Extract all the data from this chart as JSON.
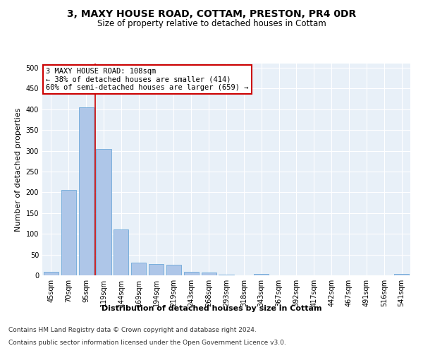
{
  "title": "3, MAXY HOUSE ROAD, COTTAM, PRESTON, PR4 0DR",
  "subtitle": "Size of property relative to detached houses in Cottam",
  "xlabel": "Distribution of detached houses by size in Cottam",
  "ylabel": "Number of detached properties",
  "categories": [
    "45sqm",
    "70sqm",
    "95sqm",
    "119sqm",
    "144sqm",
    "169sqm",
    "194sqm",
    "219sqm",
    "243sqm",
    "268sqm",
    "293sqm",
    "318sqm",
    "343sqm",
    "367sqm",
    "392sqm",
    "417sqm",
    "442sqm",
    "467sqm",
    "491sqm",
    "516sqm",
    "541sqm"
  ],
  "values": [
    8,
    205,
    405,
    305,
    110,
    30,
    28,
    25,
    8,
    6,
    2,
    0,
    3,
    0,
    0,
    0,
    0,
    0,
    0,
    0,
    3
  ],
  "bar_color": "#aec6e8",
  "bar_edgecolor": "#5a9fd4",
  "redline_x": 2.5,
  "annotation_text": "3 MAXY HOUSE ROAD: 108sqm\n← 38% of detached houses are smaller (414)\n60% of semi-detached houses are larger (659) →",
  "annotation_box_color": "#ffffff",
  "annotation_box_edgecolor": "#cc0000",
  "redline_color": "#cc0000",
  "ylim": [
    0,
    510
  ],
  "yticks": [
    0,
    50,
    100,
    150,
    200,
    250,
    300,
    350,
    400,
    450,
    500
  ],
  "background_color": "#e8f0f8",
  "footer_line1": "Contains HM Land Registry data © Crown copyright and database right 2024.",
  "footer_line2": "Contains public sector information licensed under the Open Government Licence v3.0.",
  "title_fontsize": 10,
  "subtitle_fontsize": 8.5,
  "axis_label_fontsize": 8,
  "tick_fontsize": 7,
  "footer_fontsize": 6.5,
  "annotation_fontsize": 7.5
}
